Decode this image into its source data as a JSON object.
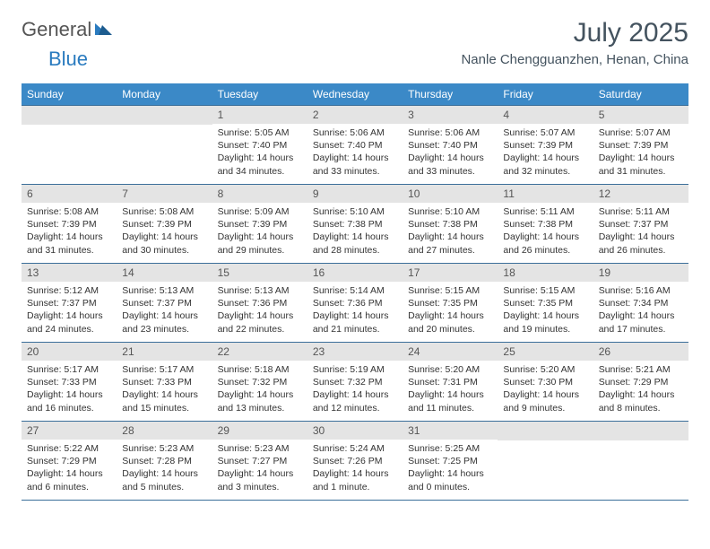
{
  "logo": {
    "general": "General",
    "blue": "Blue"
  },
  "title": {
    "month_year": "July 2025",
    "location": "Nanle Chengguanzhen, Henan, China"
  },
  "colors": {
    "header_bg": "#3b89c7",
    "header_text": "#ffffff",
    "rule": "#3b6f9a",
    "daybar": "#e4e4e4",
    "title_text": "#44535f",
    "logo_gray": "#555555",
    "logo_blue": "#2a7bbf",
    "body_text": "#333333"
  },
  "day_names": [
    "Sunday",
    "Monday",
    "Tuesday",
    "Wednesday",
    "Thursday",
    "Friday",
    "Saturday"
  ],
  "weeks": [
    [
      null,
      null,
      {
        "n": "1",
        "sr": "Sunrise: 5:05 AM",
        "ss": "Sunset: 7:40 PM",
        "dl1": "Daylight: 14 hours",
        "dl2": "and 34 minutes."
      },
      {
        "n": "2",
        "sr": "Sunrise: 5:06 AM",
        "ss": "Sunset: 7:40 PM",
        "dl1": "Daylight: 14 hours",
        "dl2": "and 33 minutes."
      },
      {
        "n": "3",
        "sr": "Sunrise: 5:06 AM",
        "ss": "Sunset: 7:40 PM",
        "dl1": "Daylight: 14 hours",
        "dl2": "and 33 minutes."
      },
      {
        "n": "4",
        "sr": "Sunrise: 5:07 AM",
        "ss": "Sunset: 7:39 PM",
        "dl1": "Daylight: 14 hours",
        "dl2": "and 32 minutes."
      },
      {
        "n": "5",
        "sr": "Sunrise: 5:07 AM",
        "ss": "Sunset: 7:39 PM",
        "dl1": "Daylight: 14 hours",
        "dl2": "and 31 minutes."
      }
    ],
    [
      {
        "n": "6",
        "sr": "Sunrise: 5:08 AM",
        "ss": "Sunset: 7:39 PM",
        "dl1": "Daylight: 14 hours",
        "dl2": "and 31 minutes."
      },
      {
        "n": "7",
        "sr": "Sunrise: 5:08 AM",
        "ss": "Sunset: 7:39 PM",
        "dl1": "Daylight: 14 hours",
        "dl2": "and 30 minutes."
      },
      {
        "n": "8",
        "sr": "Sunrise: 5:09 AM",
        "ss": "Sunset: 7:39 PM",
        "dl1": "Daylight: 14 hours",
        "dl2": "and 29 minutes."
      },
      {
        "n": "9",
        "sr": "Sunrise: 5:10 AM",
        "ss": "Sunset: 7:38 PM",
        "dl1": "Daylight: 14 hours",
        "dl2": "and 28 minutes."
      },
      {
        "n": "10",
        "sr": "Sunrise: 5:10 AM",
        "ss": "Sunset: 7:38 PM",
        "dl1": "Daylight: 14 hours",
        "dl2": "and 27 minutes."
      },
      {
        "n": "11",
        "sr": "Sunrise: 5:11 AM",
        "ss": "Sunset: 7:38 PM",
        "dl1": "Daylight: 14 hours",
        "dl2": "and 26 minutes."
      },
      {
        "n": "12",
        "sr": "Sunrise: 5:11 AM",
        "ss": "Sunset: 7:37 PM",
        "dl1": "Daylight: 14 hours",
        "dl2": "and 26 minutes."
      }
    ],
    [
      {
        "n": "13",
        "sr": "Sunrise: 5:12 AM",
        "ss": "Sunset: 7:37 PM",
        "dl1": "Daylight: 14 hours",
        "dl2": "and 24 minutes."
      },
      {
        "n": "14",
        "sr": "Sunrise: 5:13 AM",
        "ss": "Sunset: 7:37 PM",
        "dl1": "Daylight: 14 hours",
        "dl2": "and 23 minutes."
      },
      {
        "n": "15",
        "sr": "Sunrise: 5:13 AM",
        "ss": "Sunset: 7:36 PM",
        "dl1": "Daylight: 14 hours",
        "dl2": "and 22 minutes."
      },
      {
        "n": "16",
        "sr": "Sunrise: 5:14 AM",
        "ss": "Sunset: 7:36 PM",
        "dl1": "Daylight: 14 hours",
        "dl2": "and 21 minutes."
      },
      {
        "n": "17",
        "sr": "Sunrise: 5:15 AM",
        "ss": "Sunset: 7:35 PM",
        "dl1": "Daylight: 14 hours",
        "dl2": "and 20 minutes."
      },
      {
        "n": "18",
        "sr": "Sunrise: 5:15 AM",
        "ss": "Sunset: 7:35 PM",
        "dl1": "Daylight: 14 hours",
        "dl2": "and 19 minutes."
      },
      {
        "n": "19",
        "sr": "Sunrise: 5:16 AM",
        "ss": "Sunset: 7:34 PM",
        "dl1": "Daylight: 14 hours",
        "dl2": "and 17 minutes."
      }
    ],
    [
      {
        "n": "20",
        "sr": "Sunrise: 5:17 AM",
        "ss": "Sunset: 7:33 PM",
        "dl1": "Daylight: 14 hours",
        "dl2": "and 16 minutes."
      },
      {
        "n": "21",
        "sr": "Sunrise: 5:17 AM",
        "ss": "Sunset: 7:33 PM",
        "dl1": "Daylight: 14 hours",
        "dl2": "and 15 minutes."
      },
      {
        "n": "22",
        "sr": "Sunrise: 5:18 AM",
        "ss": "Sunset: 7:32 PM",
        "dl1": "Daylight: 14 hours",
        "dl2": "and 13 minutes."
      },
      {
        "n": "23",
        "sr": "Sunrise: 5:19 AM",
        "ss": "Sunset: 7:32 PM",
        "dl1": "Daylight: 14 hours",
        "dl2": "and 12 minutes."
      },
      {
        "n": "24",
        "sr": "Sunrise: 5:20 AM",
        "ss": "Sunset: 7:31 PM",
        "dl1": "Daylight: 14 hours",
        "dl2": "and 11 minutes."
      },
      {
        "n": "25",
        "sr": "Sunrise: 5:20 AM",
        "ss": "Sunset: 7:30 PM",
        "dl1": "Daylight: 14 hours",
        "dl2": "and 9 minutes."
      },
      {
        "n": "26",
        "sr": "Sunrise: 5:21 AM",
        "ss": "Sunset: 7:29 PM",
        "dl1": "Daylight: 14 hours",
        "dl2": "and 8 minutes."
      }
    ],
    [
      {
        "n": "27",
        "sr": "Sunrise: 5:22 AM",
        "ss": "Sunset: 7:29 PM",
        "dl1": "Daylight: 14 hours",
        "dl2": "and 6 minutes."
      },
      {
        "n": "28",
        "sr": "Sunrise: 5:23 AM",
        "ss": "Sunset: 7:28 PM",
        "dl1": "Daylight: 14 hours",
        "dl2": "and 5 minutes."
      },
      {
        "n": "29",
        "sr": "Sunrise: 5:23 AM",
        "ss": "Sunset: 7:27 PM",
        "dl1": "Daylight: 14 hours",
        "dl2": "and 3 minutes."
      },
      {
        "n": "30",
        "sr": "Sunrise: 5:24 AM",
        "ss": "Sunset: 7:26 PM",
        "dl1": "Daylight: 14 hours",
        "dl2": "and 1 minute."
      },
      {
        "n": "31",
        "sr": "Sunrise: 5:25 AM",
        "ss": "Sunset: 7:25 PM",
        "dl1": "Daylight: 14 hours",
        "dl2": "and 0 minutes."
      },
      null,
      null
    ]
  ]
}
